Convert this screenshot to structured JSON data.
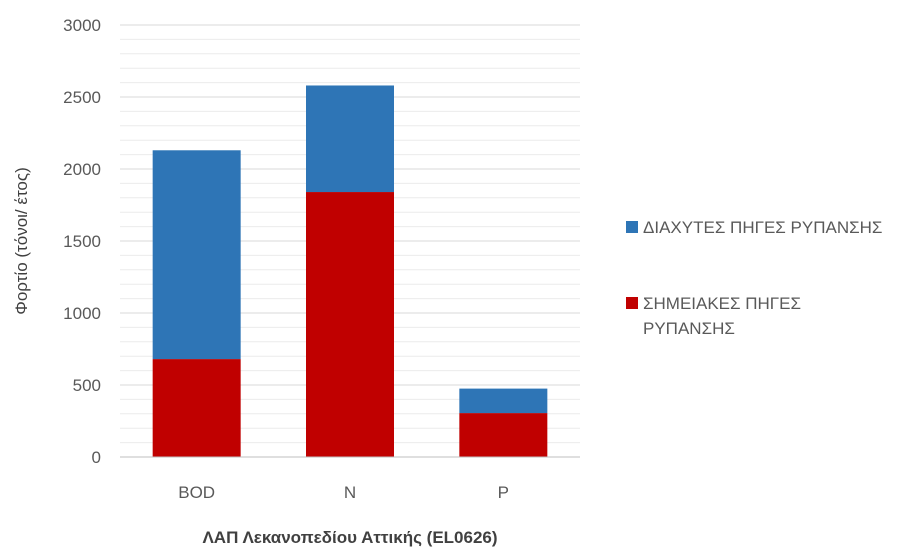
{
  "chart_data": {
    "type": "bar",
    "stacked": true,
    "title": "",
    "xlabel": "ΛΑΠ Λεκανοπεδίου Αττικής (EL0626)",
    "ylabel": "Φορτίο (τόνοι/ έτος)",
    "ylim": [
      0,
      3000
    ],
    "y_ticks": [
      "0",
      "500",
      "1000",
      "1500",
      "2000",
      "2500",
      "3000"
    ],
    "categories": [
      "BOD",
      "N",
      "P"
    ],
    "series": [
      {
        "name": "ΣΗΜΕΙΑΚΕΣ ΠΗΓΕΣ ΡΥΠΑΝΣΗΣ",
        "color": "#c00000",
        "values": [
          680,
          1840,
          305
        ]
      },
      {
        "name": "ΔΙΑΧΥΤΕΣ ΠΗΓΕΣ ΡΥΠΑΝΣΗΣ",
        "color": "#2e75b6",
        "values": [
          1450,
          740,
          170
        ]
      }
    ],
    "legend": {
      "position": "right",
      "entries": [
        {
          "lines": [
            "ΔΙΑΧΥΤΕΣ ΠΗΓΕΣ ΡΥΠΑΝΣΗΣ"
          ],
          "color": "#2e75b6"
        },
        {
          "lines": [
            "ΣΗΜΕΙΑΚΕΣ ΠΗΓΕΣ",
            "ΡΥΠΑΝΣΗΣ"
          ],
          "color": "#c00000"
        }
      ]
    },
    "grid": "horizontal major and minor",
    "colors": {
      "major_grid": "#d9d9d9",
      "minor_grid": "#ececec",
      "axis_text": "#595959",
      "axis_title": "#404040"
    }
  }
}
